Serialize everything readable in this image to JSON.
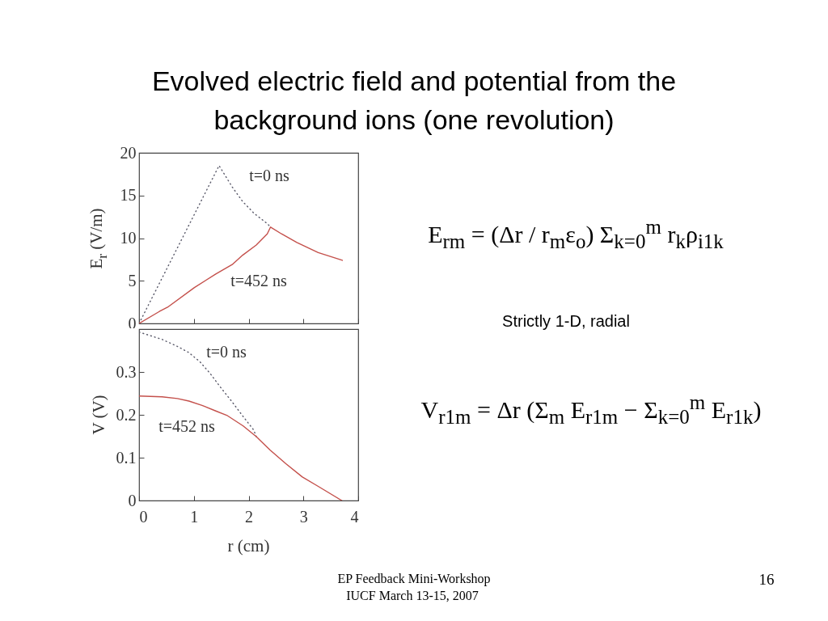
{
  "chart_data": [
    {
      "type": "line",
      "title": "Evolved electric field and potential from the background ions (one revolution)",
      "ylabel": "E$_{r}$ (V/m)",
      "xlim": [
        0,
        4
      ],
      "xticks": [
        0,
        1,
        2,
        3,
        4
      ],
      "ylim": [
        0,
        20
      ],
      "yticks": [
        0,
        5,
        10,
        15,
        20
      ],
      "tick_labels": "y",
      "series": [
        {
          "name": "t=0 ns",
          "color": "#5a5a6a",
          "line_style": "dotted",
          "x": [
            0,
            1.46,
            1.7,
            1.89,
            2.1,
            2.34,
            2.4
          ],
          "values": [
            0,
            18.5,
            16.0,
            14.3,
            12.9,
            11.7,
            11.3
          ]
        },
        {
          "name": "t=452 ns",
          "color": "#c4504b",
          "line_style": "solid",
          "x": [
            0,
            0.37,
            0.52,
            1.01,
            1.4,
            1.7,
            1.89,
            2.14,
            2.34,
            2.4,
            2.6,
            2.88,
            3.27,
            3.71
          ],
          "values": [
            0,
            1.4,
            1.9,
            4.2,
            5.8,
            6.9,
            8.0,
            9.2,
            10.5,
            11.3,
            10.5,
            9.5,
            8.3,
            7.4
          ]
        }
      ]
    },
    {
      "type": "line",
      "xlabel": "r (cm)",
      "ylabel": "V (V)",
      "xlim": [
        0,
        4
      ],
      "xticks": [
        0,
        1,
        2,
        3,
        4
      ],
      "ylim": [
        0,
        0.4
      ],
      "yticks": [
        0,
        0.1,
        0.2,
        0.3
      ],
      "series": [
        {
          "name": "t=0 ns",
          "color": "#5a5a6a",
          "line_style": "dotted",
          "x": [
            0,
            0.42,
            0.71,
            0.91,
            1.11,
            1.3,
            1.5,
            1.7,
            1.9,
            2.09,
            2.14
          ],
          "values": [
            0.393,
            0.376,
            0.359,
            0.345,
            0.324,
            0.296,
            0.262,
            0.23,
            0.196,
            0.165,
            0.149
          ]
        },
        {
          "name": "t=452 ns",
          "color": "#c4504b",
          "line_style": "solid",
          "x": [
            0,
            0.42,
            0.7,
            0.91,
            1.15,
            1.4,
            1.6,
            1.9,
            2.14,
            2.39,
            2.68,
            2.98,
            3.27,
            3.7
          ],
          "values": [
            0.244,
            0.242,
            0.238,
            0.232,
            0.222,
            0.209,
            0.199,
            0.174,
            0.149,
            0.118,
            0.086,
            0.055,
            0.033,
            0
          ]
        }
      ]
    },
    {
      "type": "other",
      "annotations": [
        "E$_{rm}$ = (Δr / r$_{m}$ε$_{o}$) Σ$_{k=0}$$^{m}$ r$_{k}$ρ$_{i1k}$",
        "Strictly 1-D, radial",
        "V$_{r1m}$ = Δr (Σ$_{m}$ E$_{r1m}$ − Σ$_{k=0}$$^{m}$ E$_{r1k}$)",
        "EP Feedback Mini-Workshop",
        "IUCF March 13-15, 2007",
        "16"
      ]
    }
  ]
}
